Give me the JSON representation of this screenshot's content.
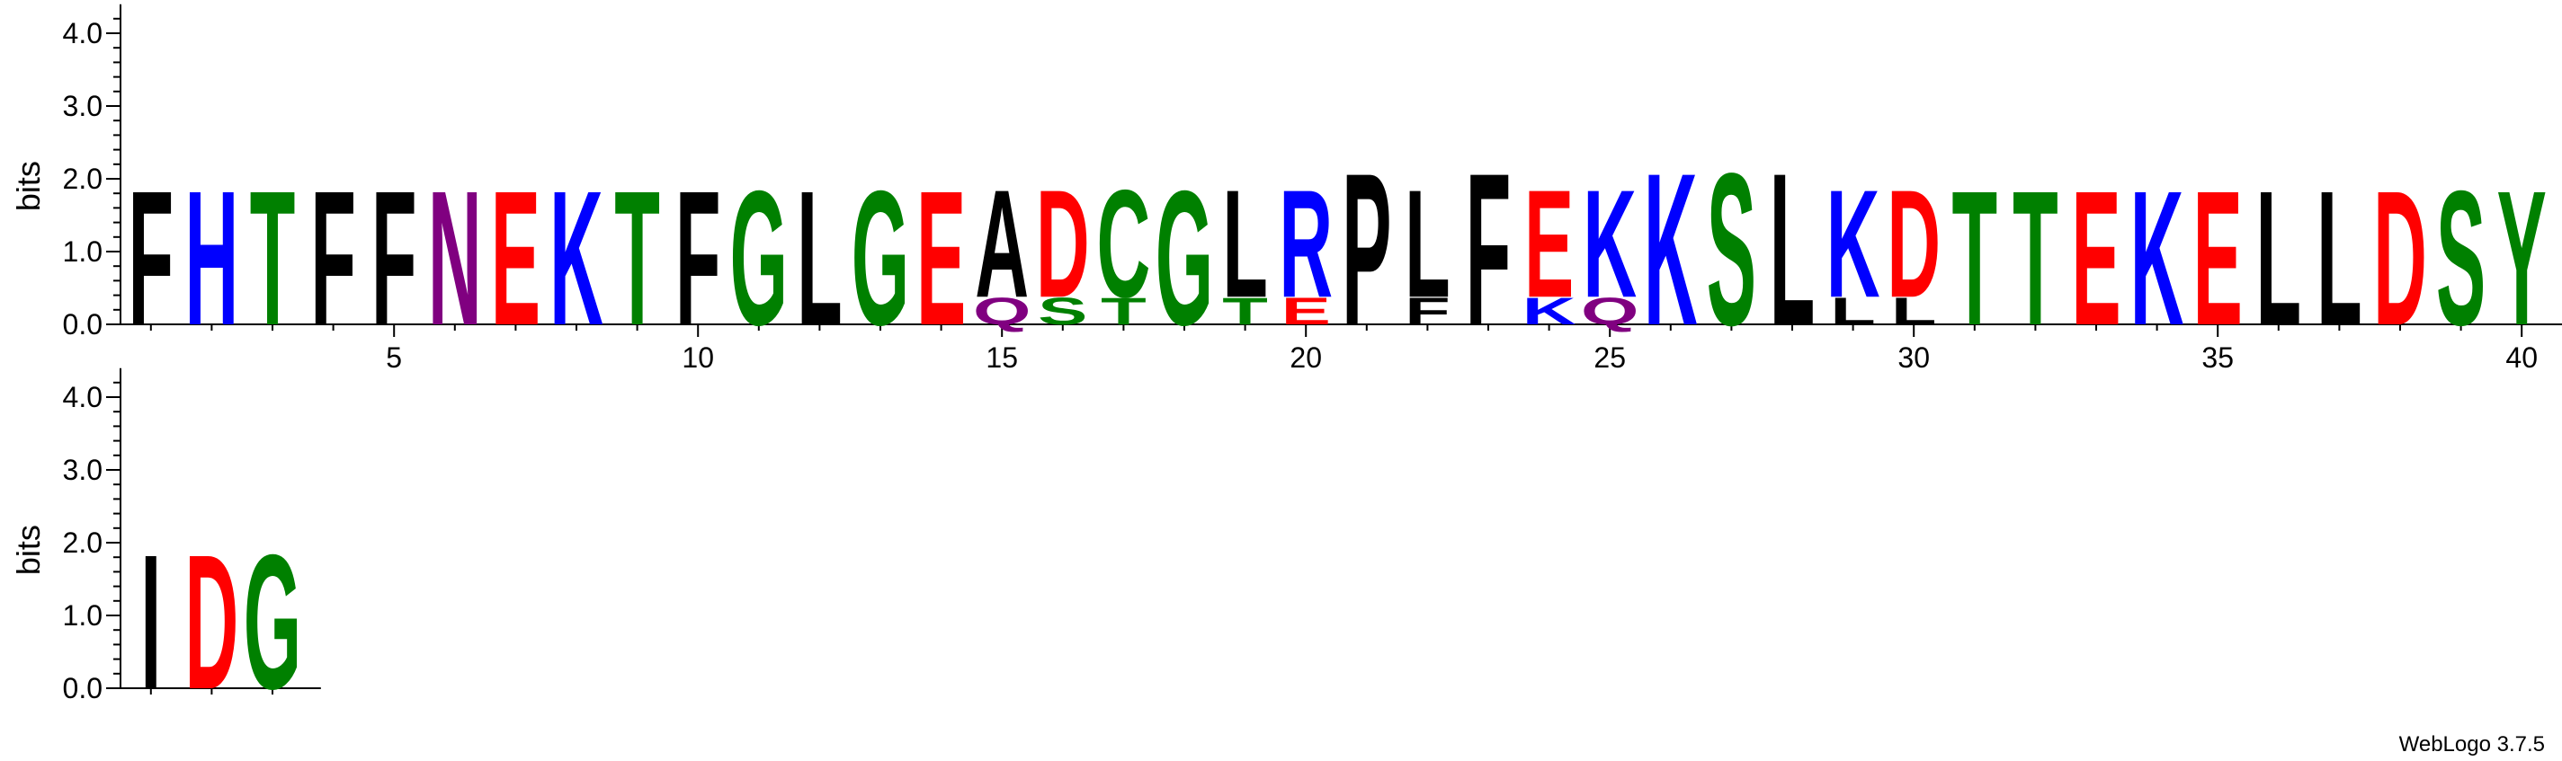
{
  "chart_data": {
    "type": "sequence_logo",
    "ylabel": "bits",
    "y_ticks": [
      "0.0",
      "1.0",
      "2.0",
      "3.0",
      "4.0"
    ],
    "ylim": [
      0,
      4.3
    ],
    "x_ticks": [
      5,
      10,
      15,
      20,
      25,
      30,
      35,
      40
    ],
    "colors": {
      "black": "#000000",
      "blue": "#0000ff",
      "green": "#008000",
      "purple": "#800080",
      "red": "#ff0000"
    },
    "rows": [
      {
        "positions": [
          {
            "pos": 1,
            "stack": [
              {
                "letter": "F",
                "height": 1.9,
                "color": "#000000"
              }
            ]
          },
          {
            "pos": 2,
            "stack": [
              {
                "letter": "H",
                "height": 1.9,
                "color": "#0000ff"
              }
            ]
          },
          {
            "pos": 3,
            "stack": [
              {
                "letter": "T",
                "height": 1.9,
                "color": "#008000"
              }
            ]
          },
          {
            "pos": 4,
            "stack": [
              {
                "letter": "F",
                "height": 1.9,
                "color": "#000000"
              }
            ]
          },
          {
            "pos": 5,
            "stack": [
              {
                "letter": "F",
                "height": 1.9,
                "color": "#000000"
              }
            ]
          },
          {
            "pos": 6,
            "stack": [
              {
                "letter": "N",
                "height": 1.9,
                "color": "#800080"
              }
            ]
          },
          {
            "pos": 7,
            "stack": [
              {
                "letter": "E",
                "height": 1.9,
                "color": "#ff0000"
              }
            ]
          },
          {
            "pos": 8,
            "stack": [
              {
                "letter": "K",
                "height": 1.9,
                "color": "#0000ff"
              }
            ]
          },
          {
            "pos": 9,
            "stack": [
              {
                "letter": "T",
                "height": 1.9,
                "color": "#008000"
              }
            ]
          },
          {
            "pos": 10,
            "stack": [
              {
                "letter": "F",
                "height": 1.9,
                "color": "#000000"
              }
            ]
          },
          {
            "pos": 11,
            "stack": [
              {
                "letter": "G",
                "height": 1.9,
                "color": "#008000"
              }
            ]
          },
          {
            "pos": 12,
            "stack": [
              {
                "letter": "L",
                "height": 1.9,
                "color": "#000000"
              }
            ]
          },
          {
            "pos": 13,
            "stack": [
              {
                "letter": "G",
                "height": 1.9,
                "color": "#008000"
              }
            ]
          },
          {
            "pos": 14,
            "stack": [
              {
                "letter": "E",
                "height": 1.9,
                "color": "#ff0000"
              }
            ]
          },
          {
            "pos": 15,
            "stack": [
              {
                "letter": "Q",
                "height": 0.38,
                "color": "#800080"
              },
              {
                "letter": "A",
                "height": 1.52,
                "color": "#000000"
              }
            ]
          },
          {
            "pos": 16,
            "stack": [
              {
                "letter": "S",
                "height": 0.38,
                "color": "#008000"
              },
              {
                "letter": "D",
                "height": 1.52,
                "color": "#ff0000"
              }
            ]
          },
          {
            "pos": 17,
            "stack": [
              {
                "letter": "T",
                "height": 0.38,
                "color": "#008000"
              },
              {
                "letter": "C",
                "height": 1.52,
                "color": "#008000"
              }
            ]
          },
          {
            "pos": 18,
            "stack": [
              {
                "letter": "G",
                "height": 1.9,
                "color": "#008000"
              }
            ]
          },
          {
            "pos": 19,
            "stack": [
              {
                "letter": "T",
                "height": 0.38,
                "color": "#008000"
              },
              {
                "letter": "L",
                "height": 1.52,
                "color": "#000000"
              }
            ]
          },
          {
            "pos": 20,
            "stack": [
              {
                "letter": "E",
                "height": 0.38,
                "color": "#ff0000"
              },
              {
                "letter": "R",
                "height": 1.52,
                "color": "#0000ff"
              }
            ]
          },
          {
            "pos": 21,
            "stack": [
              {
                "letter": "P",
                "height": 2.15,
                "color": "#000000"
              }
            ]
          },
          {
            "pos": 22,
            "stack": [
              {
                "letter": "F",
                "height": 0.38,
                "color": "#000000"
              },
              {
                "letter": "L",
                "height": 1.52,
                "color": "#000000"
              }
            ]
          },
          {
            "pos": 23,
            "stack": [
              {
                "letter": "F",
                "height": 2.15,
                "color": "#000000"
              }
            ]
          },
          {
            "pos": 24,
            "stack": [
              {
                "letter": "K",
                "height": 0.38,
                "color": "#0000ff"
              },
              {
                "letter": "E",
                "height": 1.52,
                "color": "#ff0000"
              }
            ]
          },
          {
            "pos": 25,
            "stack": [
              {
                "letter": "Q",
                "height": 0.38,
                "color": "#800080"
              },
              {
                "letter": "K",
                "height": 1.52,
                "color": "#0000ff"
              }
            ]
          },
          {
            "pos": 26,
            "stack": [
              {
                "letter": "K",
                "height": 2.15,
                "color": "#0000ff"
              }
            ]
          },
          {
            "pos": 27,
            "stack": [
              {
                "letter": "S",
                "height": 2.15,
                "color": "#008000"
              }
            ]
          },
          {
            "pos": 28,
            "stack": [
              {
                "letter": "L",
                "height": 2.15,
                "color": "#000000"
              }
            ]
          },
          {
            "pos": 29,
            "stack": [
              {
                "letter": "L",
                "height": 0.38,
                "color": "#000000"
              },
              {
                "letter": "K",
                "height": 1.52,
                "color": "#0000ff"
              }
            ]
          },
          {
            "pos": 30,
            "stack": [
              {
                "letter": "L",
                "height": 0.38,
                "color": "#000000"
              },
              {
                "letter": "D",
                "height": 1.52,
                "color": "#ff0000"
              }
            ]
          },
          {
            "pos": 31,
            "stack": [
              {
                "letter": "T",
                "height": 1.9,
                "color": "#008000"
              }
            ]
          },
          {
            "pos": 32,
            "stack": [
              {
                "letter": "T",
                "height": 1.9,
                "color": "#008000"
              }
            ]
          },
          {
            "pos": 33,
            "stack": [
              {
                "letter": "E",
                "height": 1.9,
                "color": "#ff0000"
              }
            ]
          },
          {
            "pos": 34,
            "stack": [
              {
                "letter": "K",
                "height": 1.9,
                "color": "#0000ff"
              }
            ]
          },
          {
            "pos": 35,
            "stack": [
              {
                "letter": "E",
                "height": 1.9,
                "color": "#ff0000"
              }
            ]
          },
          {
            "pos": 36,
            "stack": [
              {
                "letter": "L",
                "height": 1.9,
                "color": "#000000"
              }
            ]
          },
          {
            "pos": 37,
            "stack": [
              {
                "letter": "L",
                "height": 1.9,
                "color": "#000000"
              }
            ]
          },
          {
            "pos": 38,
            "stack": [
              {
                "letter": "D",
                "height": 1.9,
                "color": "#ff0000"
              }
            ]
          },
          {
            "pos": 39,
            "stack": [
              {
                "letter": "S",
                "height": 1.9,
                "color": "#008000"
              }
            ]
          },
          {
            "pos": 40,
            "stack": [
              {
                "letter": "Y",
                "height": 1.9,
                "color": "#008000"
              }
            ]
          }
        ]
      },
      {
        "positions": [
          {
            "pos": 41,
            "stack": [
              {
                "letter": "I",
                "height": 1.9,
                "color": "#000000"
              }
            ]
          },
          {
            "pos": 42,
            "stack": [
              {
                "letter": "D",
                "height": 1.9,
                "color": "#ff0000"
              }
            ]
          },
          {
            "pos": 43,
            "stack": [
              {
                "letter": "G",
                "height": 1.9,
                "color": "#008000"
              }
            ]
          }
        ]
      }
    ]
  },
  "footer": {
    "credit": "WebLogo 3.7.5"
  }
}
